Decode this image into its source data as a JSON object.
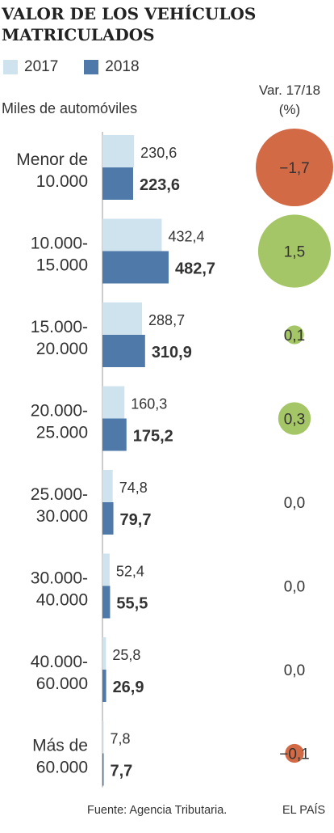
{
  "title": "VALOR DE LOS VEHÍCULOS MATRICULADOS",
  "legend": {
    "items": [
      {
        "label": "2017",
        "color": "#cfe3ee"
      },
      {
        "label": "2018",
        "color": "#4f79a8"
      }
    ]
  },
  "unit_label": "Miles de automóviles",
  "var_header": {
    "line1": "Var. 17/18",
    "line2": "(%)"
  },
  "colors": {
    "bar_2017": "#cfe3ee",
    "bar_2018": "#4f79a8",
    "bubble_negative": "#d26a45",
    "bubble_positive": "#a5c667",
    "text": "#333333"
  },
  "chart_data": {
    "type": "bar",
    "orientation": "horizontal",
    "categories": [
      [
        "Menor de",
        "10.000"
      ],
      [
        "10.000-",
        "15.000"
      ],
      [
        "15.000-",
        "20.000"
      ],
      [
        "20.000-",
        "25.000"
      ],
      [
        "25.000-",
        "30.000"
      ],
      [
        "30.000-",
        "40.000"
      ],
      [
        "40.000-",
        "60.000"
      ],
      [
        "Más de",
        "60.000"
      ]
    ],
    "series": [
      {
        "name": "2017",
        "values": [
          230.6,
          432.4,
          288.7,
          160.3,
          74.8,
          52.4,
          25.8,
          7.8
        ],
        "labels": [
          "230,6",
          "432,4",
          "288,7",
          "160,3",
          "74,8",
          "52,4",
          "25,8",
          "7,8"
        ]
      },
      {
        "name": "2018",
        "values": [
          223.6,
          482.7,
          310.9,
          175.2,
          79.7,
          55.5,
          26.9,
          7.7
        ],
        "labels": [
          "223,6",
          "482,7",
          "310,9",
          "175,2",
          "79,7",
          "55,5",
          "26,9",
          "7,7"
        ]
      }
    ],
    "variation": {
      "values": [
        -1.7,
        1.5,
        0.1,
        0.3,
        0.0,
        0.0,
        0.0,
        -0.1
      ],
      "labels": [
        "−1,7",
        "1,5",
        "0,1",
        "0,3",
        "0,0",
        "0,0",
        "0,0",
        "−0,1"
      ]
    },
    "xlim": [
      0,
      482.7
    ]
  },
  "footer": {
    "source": "Fuente: Agencia Tributaria.",
    "brand": "EL PAÍS"
  }
}
